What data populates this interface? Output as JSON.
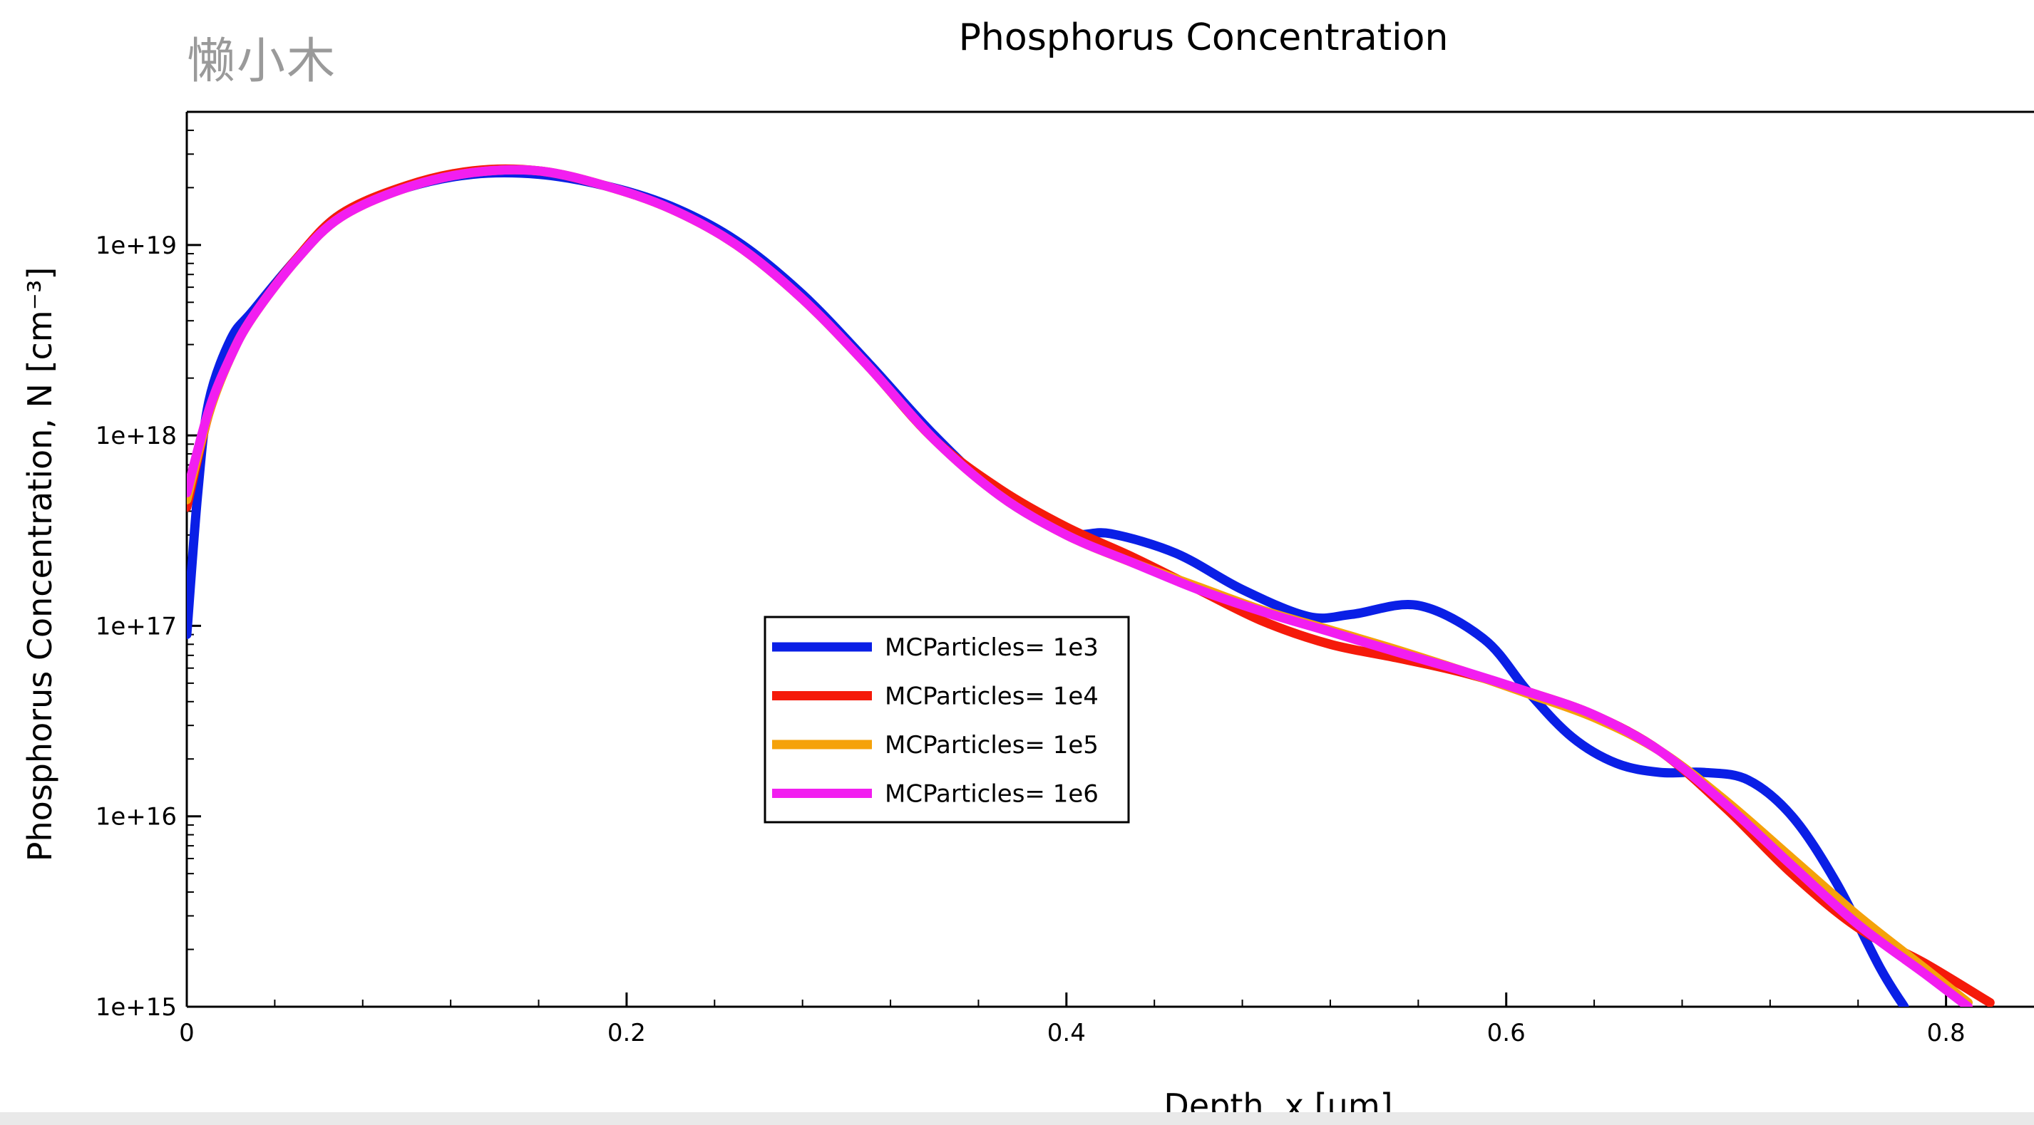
{
  "watermark": "懒小木",
  "chart_data": {
    "type": "line",
    "title": "Phosphorus Concentration",
    "xlabel": "Depth, x [µm]",
    "ylabel": "Phosphorus Concentration, N [cm⁻³]",
    "xlim": [
      0,
      0.84
    ],
    "ylim": [
      1000000000000000.0,
      5e+19
    ],
    "yscale": "log",
    "xticks": [
      0,
      0.2,
      0.4,
      0.6,
      0.8
    ],
    "xtick_labels": [
      "0",
      "0.2",
      "0.4",
      "0.6",
      "0.8"
    ],
    "yticks": [
      1000000000000000.0,
      1e+16,
      1e+17,
      1e+18,
      1e+19
    ],
    "ytick_labels": [
      "1e+15",
      "1e+16",
      "1e+17",
      "1e+18",
      "1e+19"
    ],
    "grid": false,
    "legend_position": "center-left",
    "series": [
      {
        "name": "MCParticles= 1e3",
        "color": "#0a1fe6",
        "x": [
          0,
          0.005,
          0.01,
          0.02,
          0.03,
          0.05,
          0.07,
          0.1,
          0.13,
          0.16,
          0.19,
          0.22,
          0.25,
          0.28,
          0.31,
          0.34,
          0.37,
          0.4,
          0.42,
          0.45,
          0.48,
          0.51,
          0.53,
          0.56,
          0.59,
          0.61,
          0.63,
          0.65,
          0.67,
          0.69,
          0.71,
          0.73,
          0.75,
          0.77,
          0.781
        ],
        "y": [
          9e+16,
          5e+17,
          1.5e+18,
          3.2e+18,
          4.5e+18,
          8.5e+18,
          1.45e+19,
          2e+19,
          2.35e+19,
          2.35e+19,
          2.05e+19,
          1.6e+19,
          1.05e+19,
          5.5e+18,
          2.4e+18,
          1e+18,
          4.8e+17,
          3.1e+17,
          3.05e+17,
          2.4e+17,
          1.55e+17,
          1.12e+17,
          1.15e+17,
          1.28e+17,
          8.5e+16,
          4.5e+16,
          2.6e+16,
          1.9e+16,
          1.7e+16,
          1.7e+16,
          1.55e+16,
          1e+16,
          4500000000000000.0,
          1600000000000000.0,
          1000000000000000.0
        ]
      },
      {
        "name": "MCParticles= 1e4",
        "color": "#f51a0a",
        "x": [
          0,
          0.01,
          0.02,
          0.03,
          0.05,
          0.07,
          0.1,
          0.13,
          0.16,
          0.19,
          0.22,
          0.25,
          0.28,
          0.31,
          0.34,
          0.37,
          0.4,
          0.43,
          0.46,
          0.49,
          0.52,
          0.55,
          0.58,
          0.61,
          0.64,
          0.67,
          0.7,
          0.73,
          0.76,
          0.79,
          0.82
        ],
        "y": [
          4.2e+17,
          1.3e+18,
          2.6e+18,
          4.2e+18,
          8.5e+18,
          1.45e+19,
          2.05e+19,
          2.45e+19,
          2.45e+19,
          2.05e+19,
          1.55e+19,
          1e+19,
          5.2e+18,
          2.3e+18,
          9.5e+17,
          5.2e+17,
          3.3e+17,
          2.3e+17,
          1.55e+17,
          1.05e+17,
          8e+16,
          6.8e+16,
          5.7e+16,
          4.5e+16,
          3.4e+16,
          2.2e+16,
          1.1e+16,
          5000000000000000.0,
          2600000000000000.0,
          1700000000000000.0,
          1050000000000000.0
        ]
      },
      {
        "name": "MCParticles= 1e5",
        "color": "#f5a20a",
        "x": [
          0,
          0.01,
          0.02,
          0.03,
          0.05,
          0.07,
          0.1,
          0.13,
          0.16,
          0.19,
          0.22,
          0.25,
          0.28,
          0.31,
          0.34,
          0.37,
          0.4,
          0.43,
          0.46,
          0.49,
          0.52,
          0.55,
          0.58,
          0.61,
          0.64,
          0.67,
          0.7,
          0.73,
          0.76,
          0.79,
          0.81
        ],
        "y": [
          4.6e+17,
          1.3e+18,
          2.6e+18,
          4.2e+18,
          8.4e+18,
          1.4e+19,
          2e+19,
          2.4e+19,
          2.45e+19,
          2.05e+19,
          1.55e+19,
          1e+19,
          5.2e+18,
          2.3e+18,
          9.5e+17,
          4.8e+17,
          3e+17,
          2.15e+17,
          1.6e+17,
          1.2e+17,
          9.5e+16,
          7.5e+16,
          5.8e+16,
          4.4e+16,
          3.3e+16,
          2.2e+16,
          1.2e+16,
          6000000000000000.0,
          3000000000000000.0,
          1600000000000000.0,
          1050000000000000.0
        ]
      },
      {
        "name": "MCParticles= 1e6",
        "color": "#f21ef0",
        "x": [
          0,
          0.01,
          0.02,
          0.03,
          0.05,
          0.07,
          0.1,
          0.13,
          0.16,
          0.19,
          0.22,
          0.25,
          0.28,
          0.31,
          0.34,
          0.37,
          0.4,
          0.43,
          0.46,
          0.49,
          0.52,
          0.55,
          0.58,
          0.61,
          0.64,
          0.67,
          0.7,
          0.73,
          0.76,
          0.79,
          0.81
        ],
        "y": [
          5e+17,
          1.35e+18,
          2.6e+18,
          4.2e+18,
          8.4e+18,
          1.4e+19,
          2e+19,
          2.4e+19,
          2.45e+19,
          2.05e+19,
          1.55e+19,
          1e+19,
          5.2e+18,
          2.3e+18,
          9.5e+17,
          4.8e+17,
          3e+17,
          2.15e+17,
          1.55e+17,
          1.18e+17,
          9.3e+16,
          7.3e+16,
          5.8e+16,
          4.5e+16,
          3.4e+16,
          2.2e+16,
          1.15e+16,
          5500000000000000.0,
          2700000000000000.0,
          1500000000000000.0,
          1000000000000000.0
        ]
      }
    ]
  }
}
